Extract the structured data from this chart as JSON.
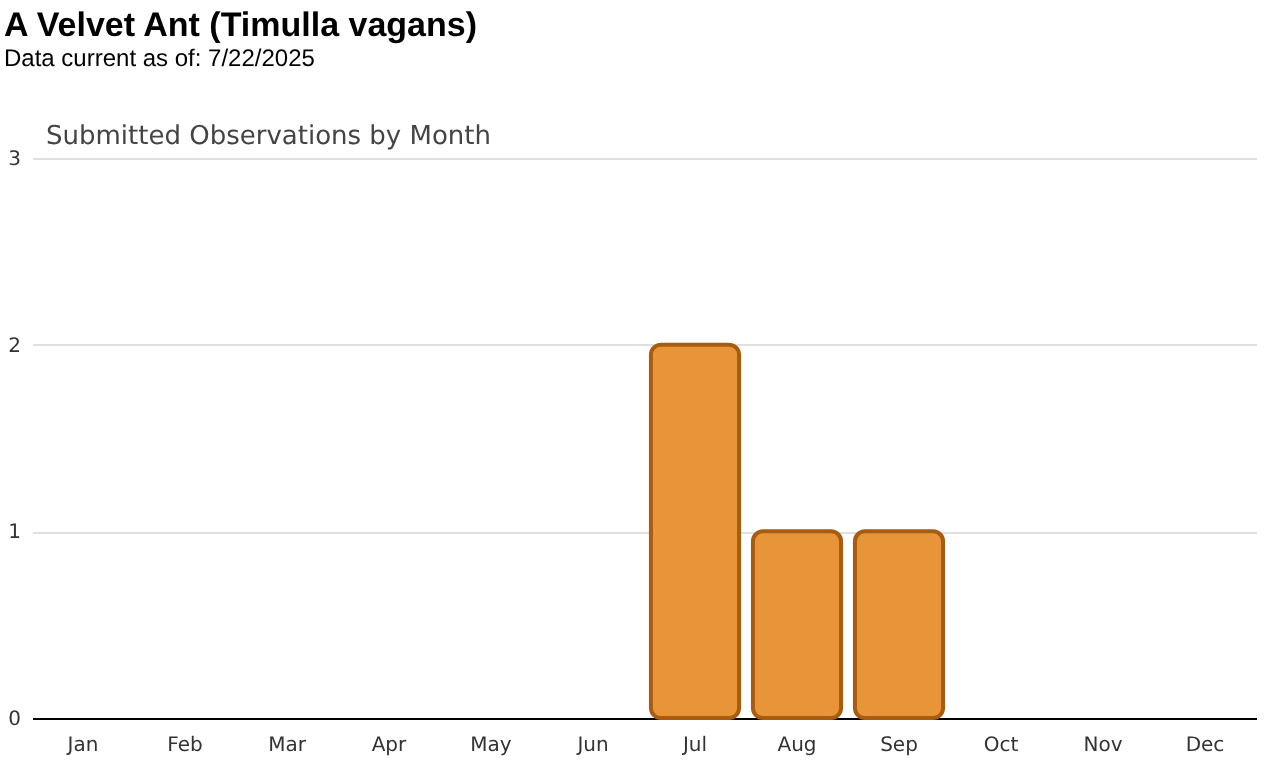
{
  "chart_data": {
    "type": "bar",
    "title": "A Velvet Ant   (Timulla vagans)",
    "subtitle": "Data current as of: 7/22/2025",
    "annotations": [
      "Submitted Observations by Month"
    ],
    "categories": [
      "Jan",
      "Feb",
      "Mar",
      "Apr",
      "May",
      "Jun",
      "Jul",
      "Aug",
      "Sep",
      "Oct",
      "Nov",
      "Dec"
    ],
    "values": [
      0,
      0,
      0,
      0,
      0,
      0,
      2,
      1,
      1,
      0,
      0,
      0
    ],
    "color": "#e8953a",
    "ylim": [
      0,
      3
    ],
    "yticks": [
      0,
      1,
      2,
      3
    ],
    "grid": "y"
  }
}
